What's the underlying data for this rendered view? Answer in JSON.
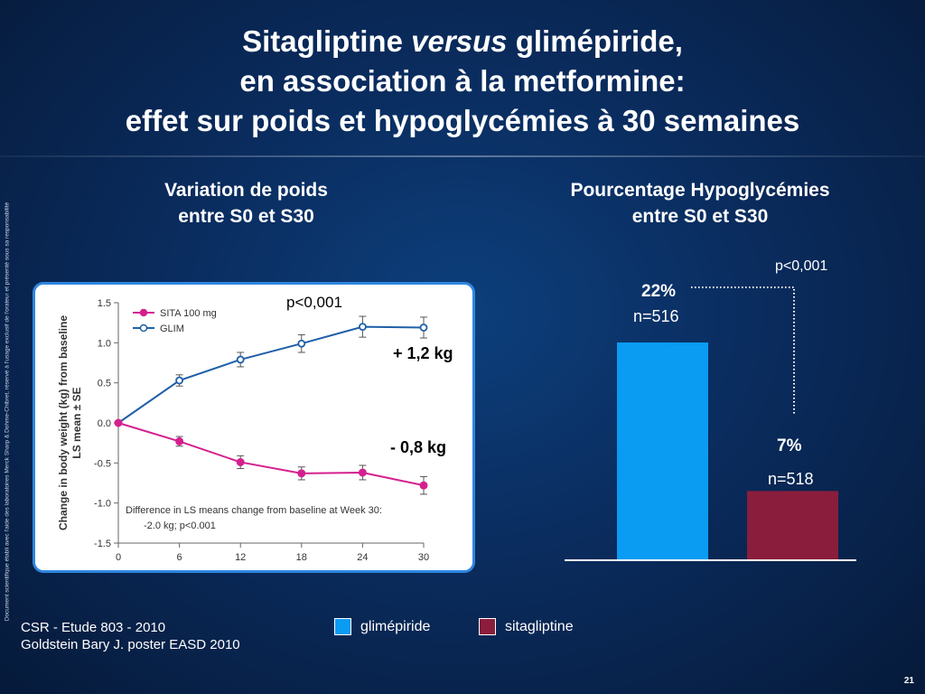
{
  "slide": {
    "title_part1": "Sitagliptine ",
    "title_italic": "versus",
    "title_part2": " glimépiride,",
    "title_line2": "en association à la metformine:",
    "title_line3": "effet sur poids et hypoglycémies à 30 semaines",
    "vertical_note": "Document scientifique établi avec l'aide des laboratoires Merck Sharp & Dohme-Chibret, réservé à l'usage exclusif de l'orateur et présenté sous sa responsabilité",
    "page_number": "21"
  },
  "left_panel": {
    "heading_line1": "Variation de poids",
    "heading_line2": "entre S0 et S30",
    "p_value": "p<0,001",
    "glim_label": "+ 1,2 kg",
    "sita_label": "- 0,8 kg"
  },
  "right_panel": {
    "heading_line1": "Pourcentage Hypoglycémies",
    "heading_line2": "entre S0 et S30",
    "p_value": "p<0,001",
    "glim_pct": "22%",
    "glim_n": "n=516",
    "sita_pct": "7%",
    "sita_n": "n=518"
  },
  "legend": [
    {
      "label": "glimépiride",
      "color": "#0a9bf2"
    },
    {
      "label": "sitagliptine",
      "color": "#8a1d3c"
    }
  ],
  "footer": {
    "line1": "CSR - Etude 803 - 2010",
    "line2": "Goldstein  Bary J.  poster EASD 2010"
  },
  "chart_data": [
    {
      "type": "line",
      "x": [
        0,
        6,
        12,
        18,
        24,
        30
      ],
      "xticks": [
        "0",
        "6",
        "12",
        "18",
        "24",
        "30"
      ],
      "yticks": [
        "1.5",
        "1.0",
        "0.5",
        "0.0",
        "-0.5",
        "-1.0",
        "-1.5"
      ],
      "ylim": [
        -1.5,
        1.5
      ],
      "ylabel_line1": "Change in body weight (kg) from baseline",
      "ylabel_line2": "LS mean ± SE",
      "series": [
        {
          "name": "SITA 100 mg",
          "color": "#d4208f",
          "values": [
            0.0,
            -0.23,
            -0.49,
            -0.63,
            -0.62,
            -0.78
          ],
          "err": [
            0.0,
            0.06,
            0.08,
            0.08,
            0.09,
            0.11
          ]
        },
        {
          "name": "GLIM",
          "color": "#1f5fa8",
          "values": [
            0.0,
            0.53,
            0.79,
            0.99,
            1.2,
            1.19
          ],
          "err": [
            0.0,
            0.07,
            0.09,
            0.11,
            0.13,
            0.13
          ]
        }
      ],
      "annotation_line1": "Difference in LS means change from baseline at Week 30:",
      "annotation_line2": "-2.0 kg; p<0.001"
    },
    {
      "type": "bar",
      "categories": [
        "glimépiride",
        "sitagliptine"
      ],
      "values": [
        22,
        7
      ],
      "unit": "%",
      "colors": [
        "#0a9bf2",
        "#8a1d3c"
      ]
    }
  ]
}
